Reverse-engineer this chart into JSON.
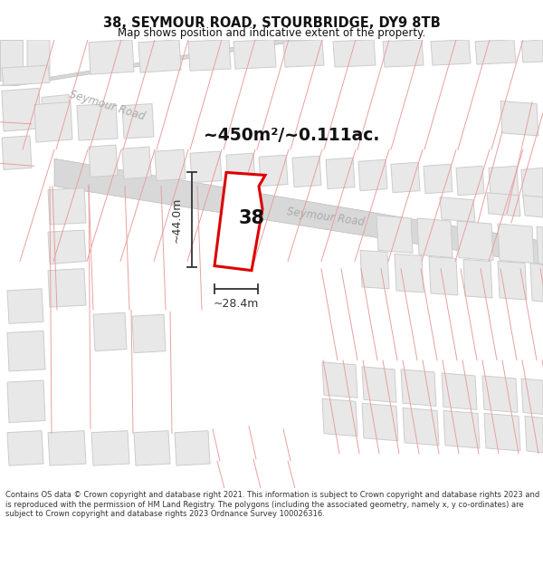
{
  "title": "38, SEYMOUR ROAD, STOURBRIDGE, DY9 8TB",
  "subtitle": "Map shows position and indicative extent of the property.",
  "area_text": "~450m²/~0.111ac.",
  "dim_width": "~28.4m",
  "dim_height": "~44.0m",
  "property_number": "38",
  "footer": "Contains OS data © Crown copyright and database right 2021. This information is subject to Crown copyright and database rights 2023 and is reproduced with the permission of HM Land Registry. The polygons (including the associated geometry, namely x, y co-ordinates) are subject to Crown copyright and database rights 2023 Ordnance Survey 100026316.",
  "bg_color": "#ffffff",
  "map_bg_color": "#ffffff",
  "road_fill": "#e8e8e8",
  "road_fill2": "#d8d8d8",
  "building_fill": "#e8e8e8",
  "building_ec": "#cccccc",
  "street_line_color": "#e8a0a0",
  "highlight_color": "#dd0000",
  "road_label_color": "#aaaaaa",
  "text_color": "#111111",
  "footer_color": "#333333",
  "dim_color": "#333333"
}
